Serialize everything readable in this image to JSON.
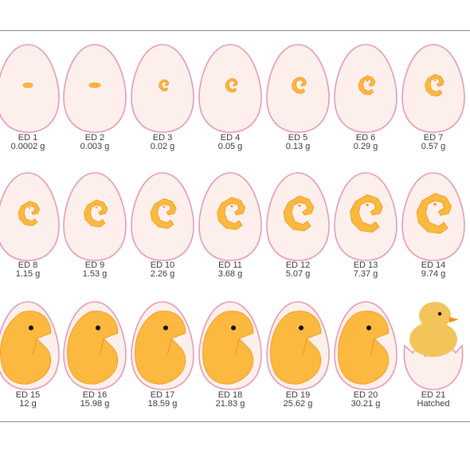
{
  "colors": {
    "egg_fill": "#fdf0ec",
    "egg_stroke": "#e79ab4",
    "embryo_fill": "#fbb93f",
    "embryo_stroke": "#f29a20",
    "eye": "#111111",
    "chick": "#f3c45a",
    "beak": "#f0902a"
  },
  "stages": [
    {
      "day": "ED 1",
      "mass": "0.0002 g"
    },
    {
      "day": "ED 2",
      "mass": "0.003 g"
    },
    {
      "day": "ED 3",
      "mass": "0.02 g"
    },
    {
      "day": "ED 4",
      "mass": "0.05 g"
    },
    {
      "day": "ED 5",
      "mass": "0.13 g"
    },
    {
      "day": "ED 6",
      "mass": "0.29 g"
    },
    {
      "day": "ED 7",
      "mass": "0.57 g"
    },
    {
      "day": "ED 8",
      "mass": "1.15 g"
    },
    {
      "day": "ED 9",
      "mass": "1.53 g"
    },
    {
      "day": "ED 10",
      "mass": "2.26 g"
    },
    {
      "day": "ED 11",
      "mass": "3.68 g"
    },
    {
      "day": "ED 12",
      "mass": "5.07 g"
    },
    {
      "day": "ED 13",
      "mass": "7.37 g"
    },
    {
      "day": "ED 14",
      "mass": "9.74 g"
    },
    {
      "day": "ED 15",
      "mass": "12 g"
    },
    {
      "day": "ED 16",
      "mass": "15.98 g"
    },
    {
      "day": "ED 17",
      "mass": "18.59 g"
    },
    {
      "day": "ED 18",
      "mass": "21.83 g"
    },
    {
      "day": "ED 19",
      "mass": "25.62 g"
    },
    {
      "day": "ED 20",
      "mass": "30.21 g"
    },
    {
      "day": "ED 21",
      "mass": "Hatched"
    }
  ]
}
